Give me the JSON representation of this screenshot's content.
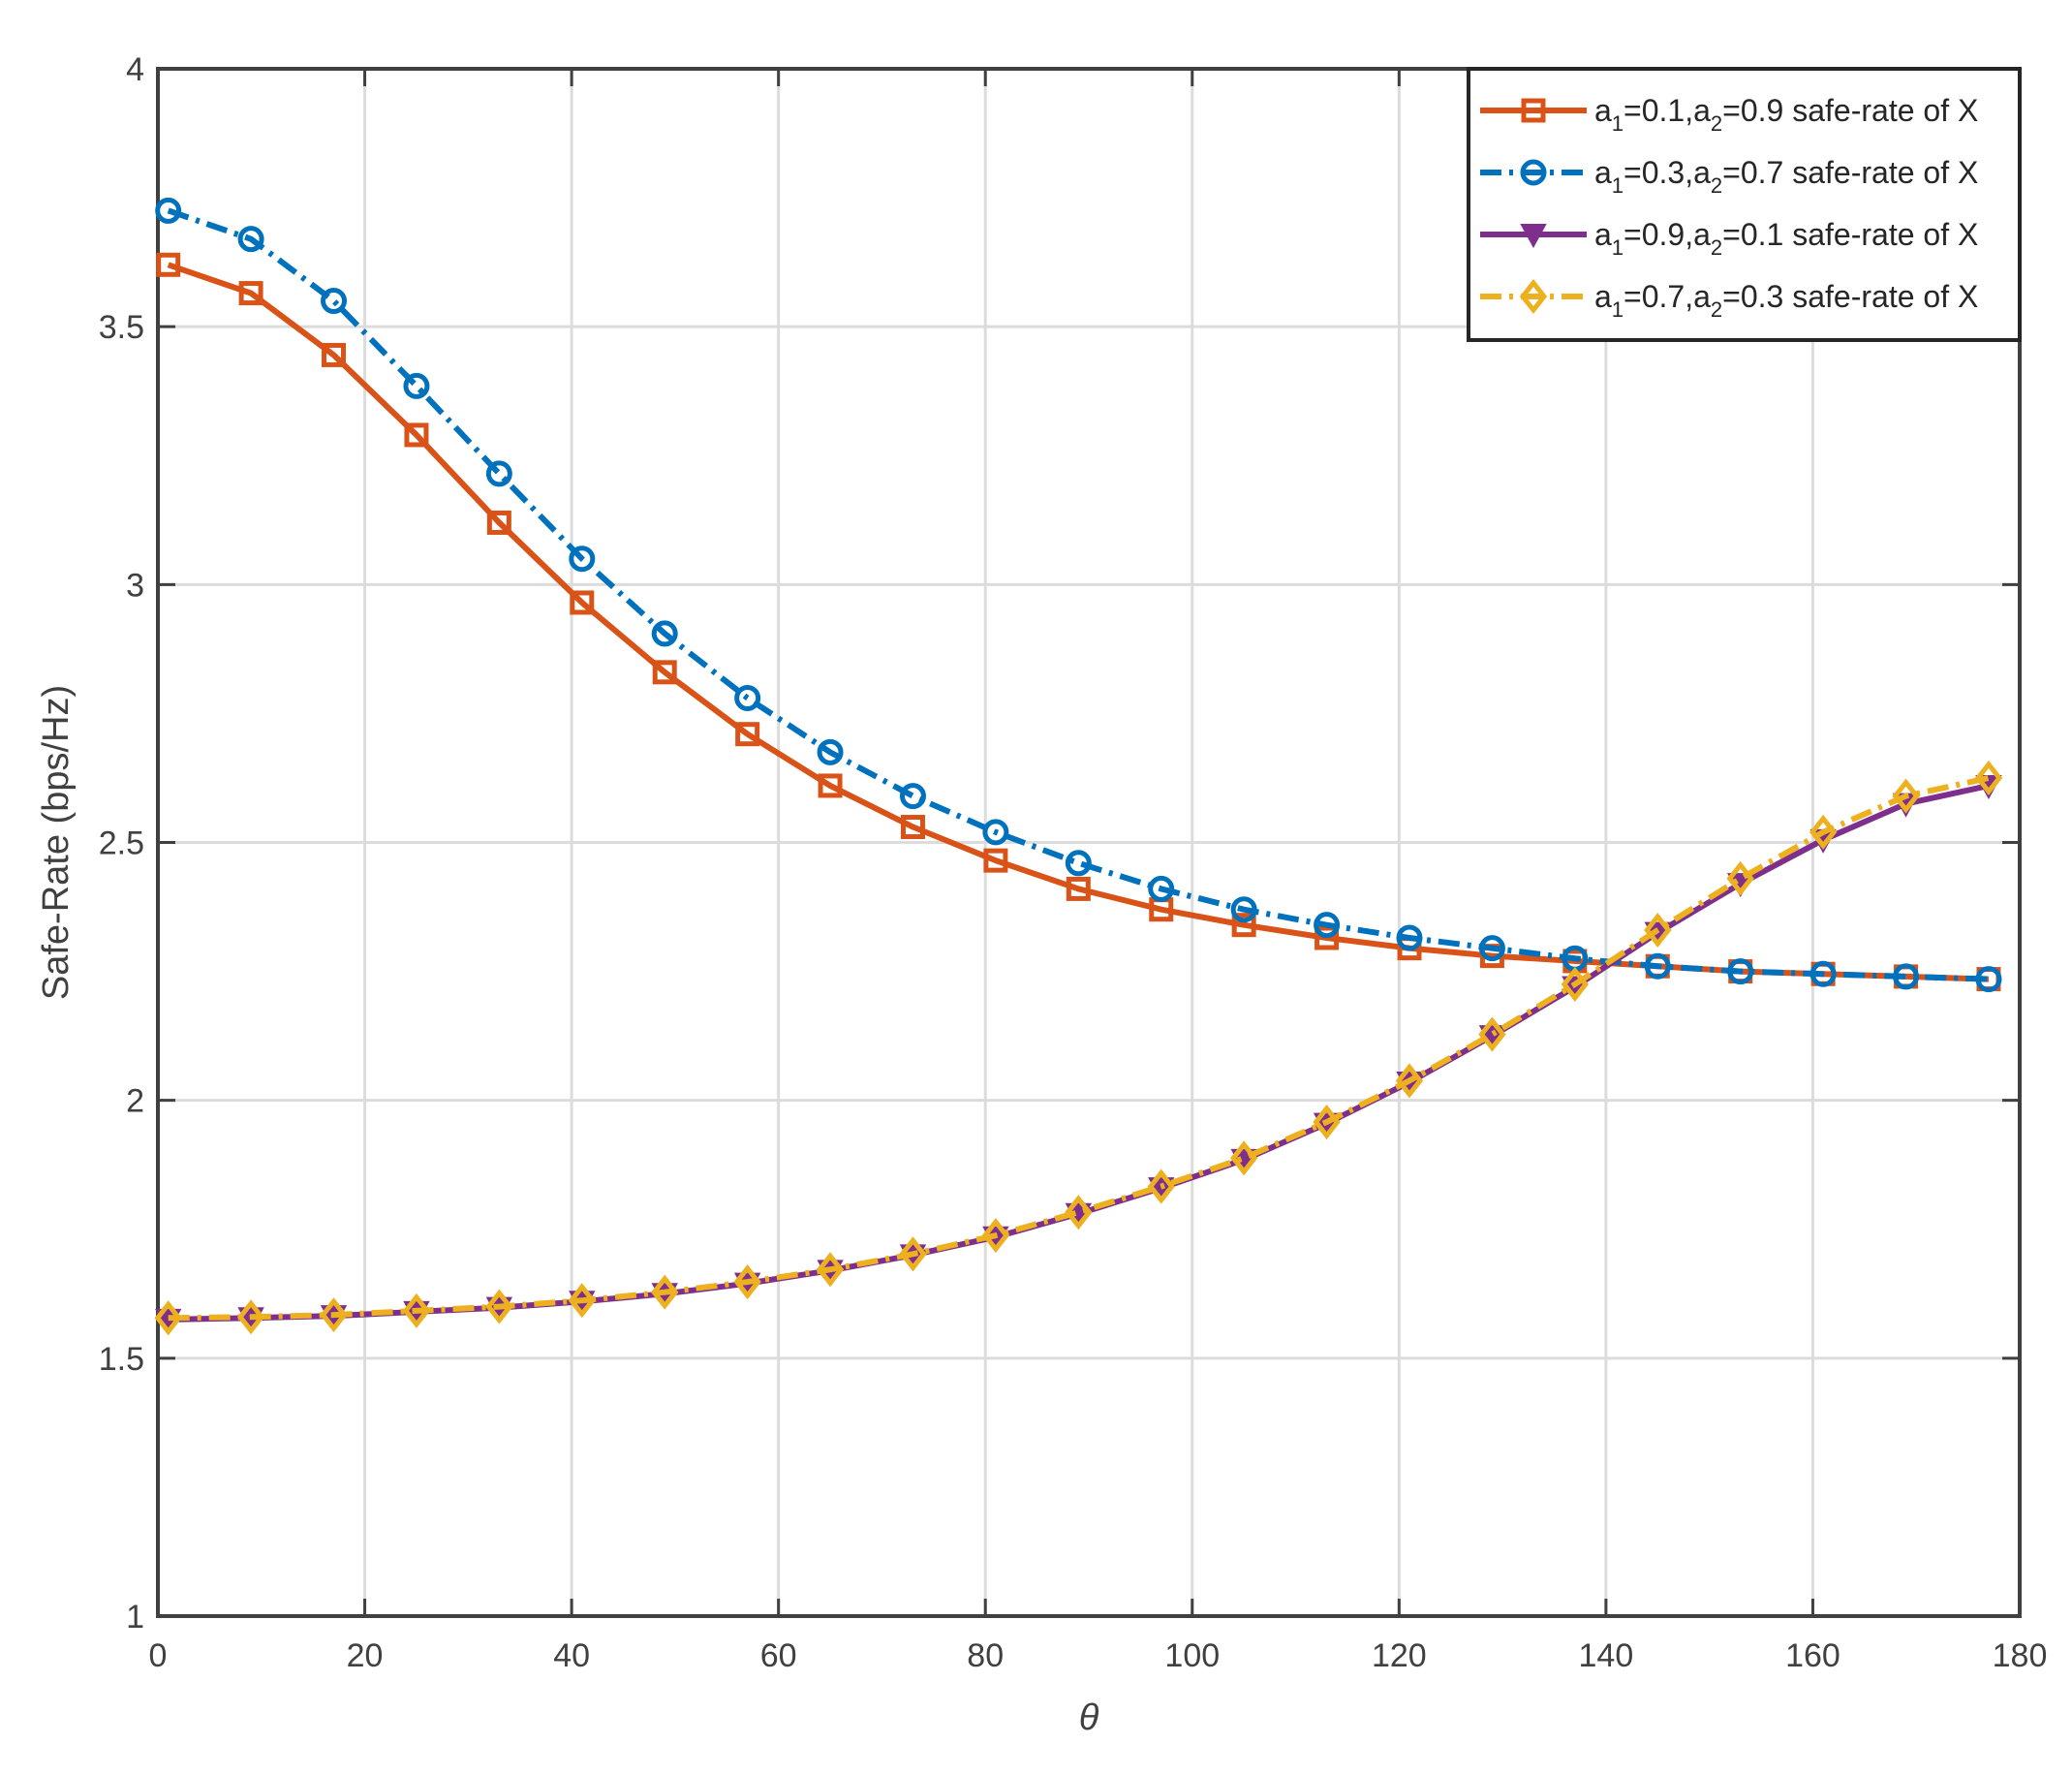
{
  "chart_data": {
    "type": "line",
    "xlabel": "θ",
    "ylabel": "Safe-Rate (bps/Hz)",
    "xlim": [
      0,
      180
    ],
    "ylim": [
      1,
      4
    ],
    "xticks": [
      0,
      20,
      40,
      60,
      80,
      100,
      120,
      140,
      160,
      180
    ],
    "yticks": [
      1,
      1.5,
      2,
      2.5,
      3,
      3.5,
      4
    ],
    "xtick_labels": [
      "0",
      "20",
      "40",
      "60",
      "80",
      "100",
      "120",
      "140",
      "160",
      "180"
    ],
    "ytick_labels": [
      "1",
      "1.5",
      "2",
      "2.5",
      "3",
      "3.5",
      "4"
    ],
    "grid": true,
    "legend_position": "top-right",
    "x": [
      1,
      9,
      17,
      25,
      33,
      41,
      49,
      57,
      65,
      73,
      81,
      89,
      97,
      105,
      113,
      121,
      129,
      137,
      145,
      153,
      161,
      169,
      177
    ],
    "series": [
      {
        "name": "a1=0.1,a2=0.9 safe-rate of X",
        "legend": {
          "p1": "a",
          "s1": "1",
          "p2": "=0.1,a",
          "s2": "2",
          "p3": "=0.9 safe-rate of X"
        },
        "color": "#D95319",
        "marker": "square",
        "dash": "solid",
        "values": [
          3.62,
          3.565,
          3.445,
          3.29,
          3.12,
          2.965,
          2.83,
          2.71,
          2.61,
          2.53,
          2.465,
          2.41,
          2.37,
          2.34,
          2.315,
          2.295,
          2.28,
          2.27,
          2.26,
          2.25,
          2.245,
          2.24,
          2.235
        ]
      },
      {
        "name": "a1=0.3,a2=0.7 safe-rate of X",
        "legend": {
          "p1": "a",
          "s1": "1",
          "p2": "=0.3,a",
          "s2": "2",
          "p3": "=0.7 safe-rate of X"
        },
        "color": "#0072BD",
        "marker": "circle",
        "dash": "dashdot",
        "values": [
          3.725,
          3.67,
          3.55,
          3.385,
          3.215,
          3.05,
          2.905,
          2.78,
          2.675,
          2.59,
          2.52,
          2.46,
          2.41,
          2.37,
          2.34,
          2.315,
          2.295,
          2.275,
          2.26,
          2.25,
          2.245,
          2.24,
          2.235
        ]
      },
      {
        "name": "a1=0.9,a2=0.1 safe-rate of X",
        "legend": {
          "p1": "a",
          "s1": "1",
          "p2": "=0.9,a",
          "s2": "2",
          "p3": "=0.1 safe-rate of X"
        },
        "color": "#7E2F8E",
        "marker": "triangle-down",
        "dash": "solid",
        "values": [
          1.575,
          1.578,
          1.582,
          1.59,
          1.598,
          1.61,
          1.625,
          1.645,
          1.67,
          1.7,
          1.735,
          1.78,
          1.83,
          1.885,
          1.955,
          2.035,
          2.125,
          2.22,
          2.325,
          2.42,
          2.505,
          2.575,
          2.61
        ]
      },
      {
        "name": "a1=0.7,a2=0.3 safe-rate of X",
        "legend": {
          "p1": "a",
          "s1": "1",
          "p2": "=0.7,a",
          "s2": "2",
          "p3": "=0.3 safe-rate of X"
        },
        "color": "#EDB120",
        "marker": "diamond",
        "dash": "dashdot",
        "values": [
          1.578,
          1.58,
          1.584,
          1.592,
          1.6,
          1.612,
          1.628,
          1.648,
          1.672,
          1.702,
          1.738,
          1.783,
          1.833,
          1.888,
          1.958,
          2.038,
          2.128,
          2.225,
          2.33,
          2.43,
          2.52,
          2.59,
          2.625
        ]
      }
    ]
  }
}
